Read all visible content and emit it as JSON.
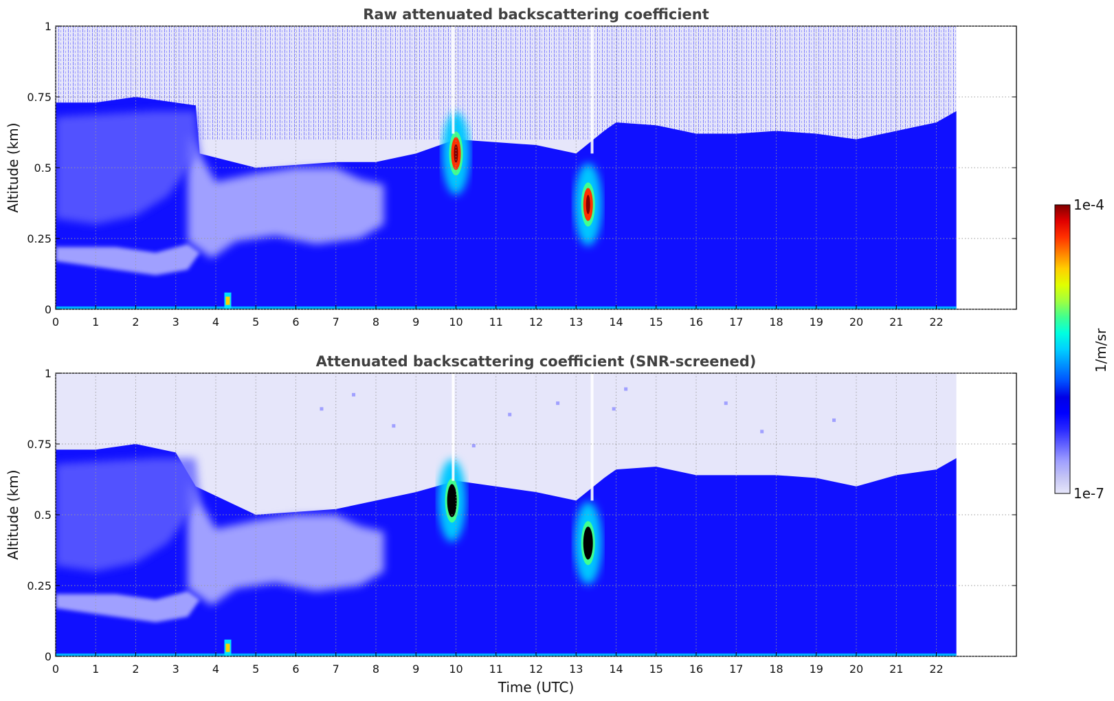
{
  "chart_data": [
    {
      "type": "heatmap",
      "title": "Raw attenuated backscattering coefficient",
      "xlabel": "",
      "ylabel": "Altitude (km)",
      "xlim": [
        0,
        24
      ],
      "ylim": [
        0,
        1
      ],
      "data_extent_x": [
        0,
        22.5
      ],
      "x_ticks": [
        "0",
        "1",
        "2",
        "3",
        "4",
        "5",
        "6",
        "7",
        "8",
        "9",
        "10",
        "11",
        "12",
        "13",
        "14",
        "15",
        "16",
        "17",
        "18",
        "19",
        "20",
        "21",
        "22"
      ],
      "y_ticks": [
        "0",
        "0.25",
        "0.5",
        "0.75",
        "1"
      ],
      "grid": true,
      "top_boundary_km": [
        [
          0,
          0.73
        ],
        [
          1,
          0.73
        ],
        [
          2,
          0.75
        ],
        [
          3,
          0.73
        ],
        [
          3.5,
          0.72
        ],
        [
          3.6,
          0.55
        ],
        [
          5,
          0.5
        ],
        [
          7,
          0.52
        ],
        [
          8,
          0.52
        ],
        [
          9,
          0.55
        ],
        [
          10,
          0.6
        ],
        [
          12,
          0.58
        ],
        [
          13,
          0.55
        ],
        [
          13.7,
          0.63
        ],
        [
          14,
          0.66
        ],
        [
          15,
          0.65
        ],
        [
          16,
          0.62
        ],
        [
          17,
          0.62
        ],
        [
          18,
          0.63
        ],
        [
          19,
          0.62
        ],
        [
          20,
          0.6
        ],
        [
          21,
          0.63
        ],
        [
          22,
          0.66
        ],
        [
          22.5,
          0.7
        ]
      ],
      "features": [
        {
          "x": 4.3,
          "y": 0.03,
          "intensity": "high"
        },
        {
          "x": 10.0,
          "y": 0.55,
          "intensity": "max"
        },
        {
          "x": 13.3,
          "y": 0.37,
          "intensity": "max"
        }
      ]
    },
    {
      "type": "heatmap",
      "title": "Attenuated backscattering coefficient (SNR-screened)",
      "xlabel": "Time (UTC)",
      "ylabel": "Altitude (km)",
      "xlim": [
        0,
        24
      ],
      "ylim": [
        0,
        1
      ],
      "data_extent_x": [
        0,
        22.5
      ],
      "x_ticks": [
        "0",
        "1",
        "2",
        "3",
        "4",
        "5",
        "6",
        "7",
        "8",
        "9",
        "10",
        "11",
        "12",
        "13",
        "14",
        "15",
        "16",
        "17",
        "18",
        "19",
        "20",
        "21",
        "22"
      ],
      "y_ticks": [
        "0",
        "0.25",
        "0.5",
        "0.75",
        "1"
      ],
      "grid": true,
      "top_boundary_km": [
        [
          0,
          0.73
        ],
        [
          1,
          0.73
        ],
        [
          2,
          0.75
        ],
        [
          3,
          0.72
        ],
        [
          3.5,
          0.6
        ],
        [
          5,
          0.5
        ],
        [
          7,
          0.52
        ],
        [
          8,
          0.55
        ],
        [
          9,
          0.58
        ],
        [
          10,
          0.62
        ],
        [
          12,
          0.58
        ],
        [
          13,
          0.55
        ],
        [
          13.7,
          0.63
        ],
        [
          14,
          0.66
        ],
        [
          15,
          0.67
        ],
        [
          16,
          0.64
        ],
        [
          17,
          0.64
        ],
        [
          18,
          0.64
        ],
        [
          19,
          0.63
        ],
        [
          20,
          0.6
        ],
        [
          21,
          0.64
        ],
        [
          22,
          0.66
        ],
        [
          22.5,
          0.7
        ]
      ],
      "features": [
        {
          "x": 4.3,
          "y": 0.03,
          "intensity": "high"
        },
        {
          "x": 9.9,
          "y": 0.55,
          "intensity": "saturated"
        },
        {
          "x": 13.3,
          "y": 0.4,
          "intensity": "saturated"
        }
      ]
    }
  ],
  "colorbar": {
    "max_label": "1e-4",
    "min_label": "1e-7",
    "unit_label": "1/m/sr",
    "colors": [
      "#e6e6fa",
      "#c4c4f4",
      "#a0a0ff",
      "#6464ff",
      "#2828ff",
      "#0000ff",
      "#0000e6",
      "#0050ff",
      "#0090ff",
      "#00d0ff",
      "#00ffe0",
      "#40ff90",
      "#a0ff40",
      "#e0ff00",
      "#ffd000",
      "#ff8000",
      "#ff3000",
      "#e00000",
      "#800000"
    ]
  }
}
